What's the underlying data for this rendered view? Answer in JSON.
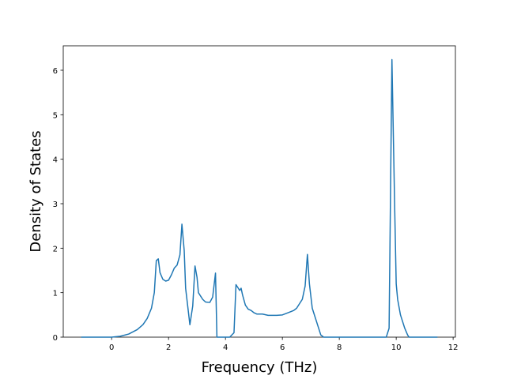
{
  "chart_data": {
    "type": "line",
    "xlabel": "Frequency (THz)",
    "ylabel": "Density of States",
    "x": [
      -1.07,
      0.0,
      0.3,
      0.6,
      0.9,
      1.1,
      1.25,
      1.4,
      1.5,
      1.57,
      1.64,
      1.7,
      1.8,
      1.9,
      2.0,
      2.1,
      2.2,
      2.3,
      2.4,
      2.47,
      2.55,
      2.6,
      2.75,
      2.85,
      2.93,
      3.0,
      3.05,
      3.2,
      3.3,
      3.45,
      3.55,
      3.65,
      3.7,
      4.15,
      4.3,
      4.37,
      4.45,
      4.5,
      4.55,
      4.6,
      4.7,
      4.8,
      4.9,
      5.0,
      5.1,
      5.3,
      5.5,
      5.8,
      6.0,
      6.2,
      6.4,
      6.5,
      6.6,
      6.7,
      6.8,
      6.88,
      6.95,
      7.05,
      7.15,
      7.25,
      7.35,
      7.45,
      9.65,
      9.75,
      9.85,
      9.95,
      10.0,
      10.05,
      10.15,
      10.3,
      10.4,
      10.45,
      11.45
    ],
    "series": [
      {
        "color": "#1f77b4",
        "values": [
          0,
          0,
          0.02,
          0.07,
          0.17,
          0.28,
          0.42,
          0.65,
          1.0,
          1.72,
          1.76,
          1.45,
          1.3,
          1.26,
          1.28,
          1.4,
          1.55,
          1.62,
          1.85,
          2.54,
          1.95,
          1.1,
          0.28,
          0.7,
          1.6,
          1.35,
          1.0,
          0.85,
          0.79,
          0.78,
          0.9,
          1.44,
          0,
          0,
          0.1,
          1.18,
          1.1,
          1.05,
          1.1,
          0.95,
          0.72,
          0.63,
          0.6,
          0.55,
          0.52,
          0.52,
          0.49,
          0.49,
          0.5,
          0.55,
          0.6,
          0.65,
          0.75,
          0.85,
          1.15,
          1.86,
          1.2,
          0.65,
          0.45,
          0.25,
          0.05,
          0,
          0,
          0.2,
          6.24,
          2.8,
          1.2,
          0.85,
          0.5,
          0.2,
          0.05,
          0,
          0
        ]
      }
    ],
    "xlim": [
      -1.7,
      12.08
    ],
    "ylim": [
      0,
      6.55
    ],
    "xticks": [
      0,
      2,
      4,
      6,
      8,
      10,
      12
    ],
    "yticks": [
      0,
      1,
      2,
      3,
      4,
      5,
      6
    ]
  }
}
